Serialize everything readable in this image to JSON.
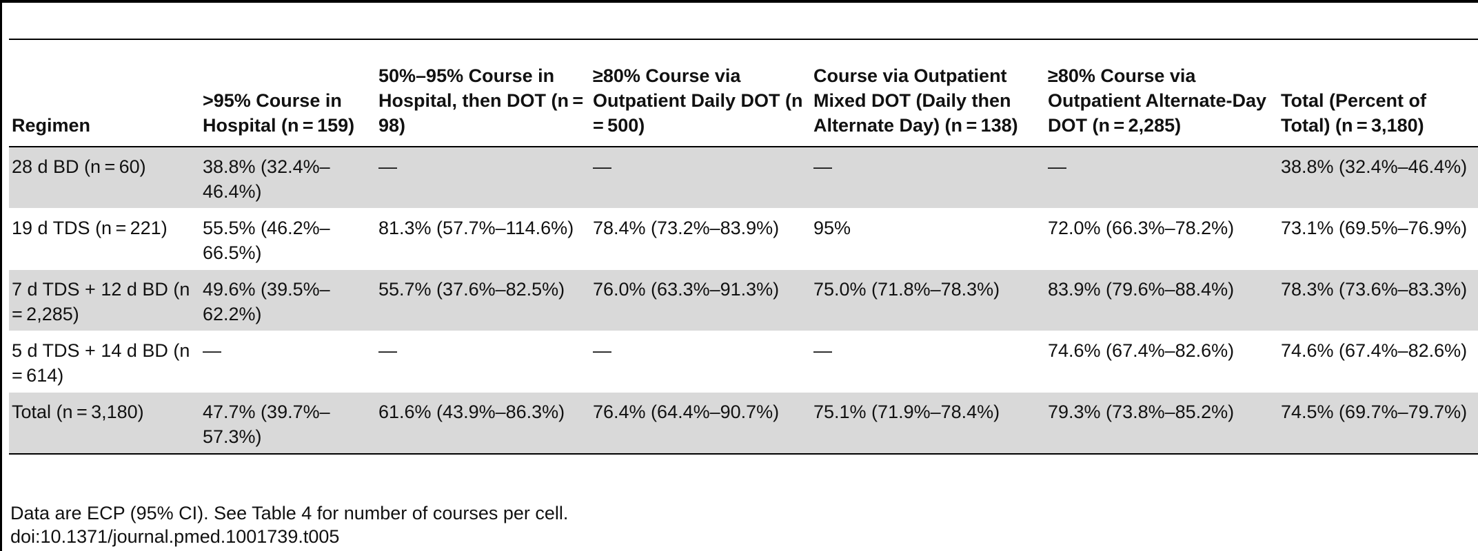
{
  "table": {
    "headers": [
      "Regimen",
      ">95% Course in Hospital (n = 159)",
      "50%–95% Course in Hospital, then DOT (n = 98)",
      "≥80% Course via Outpatient Daily DOT (n = 500)",
      "Course via Outpatient Mixed DOT (Daily then Alternate Day) (n = 138)",
      "≥80% Course via Outpatient Alternate-Day DOT (n = 2,285)",
      "Total (Percent of Total) (n = 3,180)"
    ],
    "rows": [
      [
        "28 d BD (n = 60)",
        "38.8% (32.4%–46.4%)",
        "—",
        "—",
        "—",
        "—",
        "38.8% (32.4%–46.4%)"
      ],
      [
        "19 d TDS (n = 221)",
        "55.5% (46.2%–66.5%)",
        "81.3% (57.7%–114.6%)",
        "78.4% (73.2%–83.9%)",
        "95%",
        "72.0% (66.3%–78.2%)",
        "73.1% (69.5%–76.9%)"
      ],
      [
        "7 d TDS + 12 d BD (n = 2,285)",
        "49.6% (39.5%– 62.2%)",
        "55.7% (37.6%–82.5%)",
        "76.0% (63.3%–91.3%)",
        "75.0% (71.8%–78.3%)",
        "83.9% (79.6%–88.4%)",
        "78.3% (73.6%–83.3%)"
      ],
      [
        "5 d TDS + 14 d BD (n = 614)",
        "—",
        "—",
        "—",
        "—",
        "74.6% (67.4%–82.6%)",
        "74.6% (67.4%–82.6%)"
      ],
      [
        "Total (n = 3,180)",
        "47.7% (39.7%– 57.3%)",
        "61.6% (43.9%–86.3%)",
        "76.4% (64.4%–90.7%)",
        "75.1% (71.9%–78.4%)",
        "79.3% (73.8%–85.2%)",
        "74.5% (69.7%–79.7%)"
      ]
    ]
  },
  "footer": {
    "note": "Data are ECP (95% CI). See Table 4 for number of courses per cell.",
    "doi": "doi:10.1371/journal.pmed.1001739.t005"
  }
}
